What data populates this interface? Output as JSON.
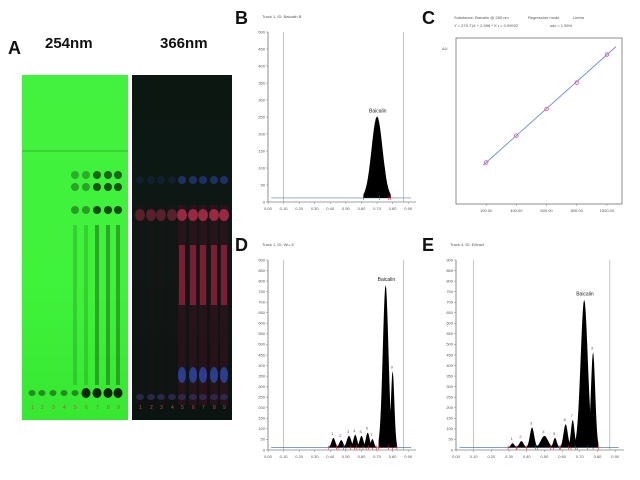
{
  "figure": {
    "panel_labels": [
      "A",
      "B",
      "C",
      "D",
      "E"
    ],
    "panelA": {
      "wavelengths": [
        "254nm",
        "366nm"
      ],
      "lanes_254": [
        "1",
        "2",
        "3",
        "4",
        "5",
        "6",
        "7",
        "8",
        "9"
      ],
      "lanes_366": [
        "1",
        "2",
        "3",
        "4",
        "5",
        "6",
        "7",
        "8",
        "9"
      ]
    },
    "panelB": {
      "header": "Track 1, ID: Baicalin B",
      "peak_label": "Baicalin",
      "y_ticks": [
        "0",
        "50",
        "100",
        "150",
        "200",
        "250",
        "300",
        "350",
        "400",
        "450",
        "500"
      ],
      "x_ticks": [
        "0.00",
        "0.10",
        "0.20",
        "0.30",
        "0.40",
        "0.50",
        "0.60",
        "0.70",
        "0.80",
        "0.90"
      ]
    },
    "panelC": {
      "title": "Substance: Baicalin @ 280 nm",
      "mode": "Regression mode",
      "mode_value": "Linear",
      "equation": "Y = 279.714 + 2.598 * X  r = 0.99932",
      "sdv": "sdv = 1.95%",
      "y_axis": "AU",
      "x_ticks": [
        "100.00",
        "400.00",
        "600.00",
        "800.00",
        "1000.00"
      ]
    },
    "panelD": {
      "header": "Track 1, ID: Wu Ji",
      "peak_label": "Baicalin",
      "y_ticks": [
        "0",
        "50",
        "100",
        "150",
        "200",
        "250",
        "300",
        "350",
        "400",
        "450",
        "500",
        "550",
        "600",
        "650",
        "700",
        "750",
        "800",
        "850",
        "900"
      ],
      "x_ticks": [
        "0.00",
        "0.10",
        "0.20",
        "0.30",
        "0.40",
        "0.50",
        "0.60",
        "0.70",
        "0.80",
        "0.90"
      ]
    },
    "panelE": {
      "header": "Track 4, ID: Extract",
      "peak_label": "Baicalin",
      "y_ticks": [
        "0",
        "50",
        "100",
        "150",
        "200",
        "250",
        "300",
        "350",
        "400",
        "450",
        "500",
        "550",
        "600",
        "650",
        "700",
        "750",
        "800",
        "850",
        "900"
      ],
      "x_ticks": [
        "0.00",
        "0.10",
        "0.20",
        "0.30",
        "0.40",
        "0.50",
        "0.60",
        "0.70",
        "0.80",
        "0.90"
      ]
    }
  },
  "chart_data": [
    {
      "type": "line",
      "panel": "B",
      "xlim": [
        0,
        0.95
      ],
      "ylim": [
        0,
        500
      ],
      "peaks": [
        {
          "x": 0.7,
          "height": 240,
          "width": 0.035,
          "label": "Baicalin"
        },
        {
          "x": 0.745,
          "height": 95,
          "width": 0.012,
          "label": ""
        }
      ],
      "baseline": 12
    },
    {
      "type": "scatter",
      "panel": "C",
      "xlim": [
        0,
        1100
      ],
      "ylim": [
        0,
        3200
      ],
      "points": [
        [
          200,
          800
        ],
        [
          400,
          1320
        ],
        [
          600,
          1830
        ],
        [
          800,
          2340
        ],
        [
          1000,
          2880
        ]
      ],
      "fit": {
        "slope": 2.598,
        "intercept": 279.714
      }
    },
    {
      "type": "line",
      "panel": "D",
      "xlim": [
        0,
        0.95
      ],
      "ylim": [
        0,
        900
      ],
      "baseline": 12,
      "peaks": [
        {
          "x": 0.42,
          "height": 45,
          "width": 0.012,
          "label": "1"
        },
        {
          "x": 0.47,
          "height": 35,
          "width": 0.012,
          "label": "2"
        },
        {
          "x": 0.52,
          "height": 55,
          "width": 0.014,
          "label": "3"
        },
        {
          "x": 0.56,
          "height": 60,
          "width": 0.012,
          "label": "4"
        },
        {
          "x": 0.6,
          "height": 55,
          "width": 0.012,
          "label": "5"
        },
        {
          "x": 0.64,
          "height": 70,
          "width": 0.012,
          "label": "6"
        },
        {
          "x": 0.67,
          "height": 40,
          "width": 0.01,
          "label": "7"
        },
        {
          "x": 0.755,
          "height": 770,
          "width": 0.018,
          "label": "Baicalin"
        },
        {
          "x": 0.8,
          "height": 360,
          "width": 0.011,
          "label": "9"
        }
      ]
    },
    {
      "type": "line",
      "panel": "E",
      "xlim": [
        0,
        0.95
      ],
      "ylim": [
        0,
        900
      ],
      "baseline": 12,
      "peaks": [
        {
          "x": 0.32,
          "height": 20,
          "width": 0.01,
          "label": "1"
        },
        {
          "x": 0.37,
          "height": 30,
          "width": 0.012,
          "label": "2"
        },
        {
          "x": 0.43,
          "height": 95,
          "width": 0.012,
          "label": "3"
        },
        {
          "x": 0.5,
          "height": 55,
          "width": 0.02,
          "label": "4"
        },
        {
          "x": 0.56,
          "height": 45,
          "width": 0.01,
          "label": "5"
        },
        {
          "x": 0.62,
          "height": 110,
          "width": 0.012,
          "label": "6"
        },
        {
          "x": 0.66,
          "height": 130,
          "width": 0.01,
          "label": "7"
        },
        {
          "x": 0.725,
          "height": 700,
          "width": 0.02,
          "label": "Baicalin"
        },
        {
          "x": 0.775,
          "height": 450,
          "width": 0.012,
          "label": "9"
        }
      ]
    }
  ]
}
